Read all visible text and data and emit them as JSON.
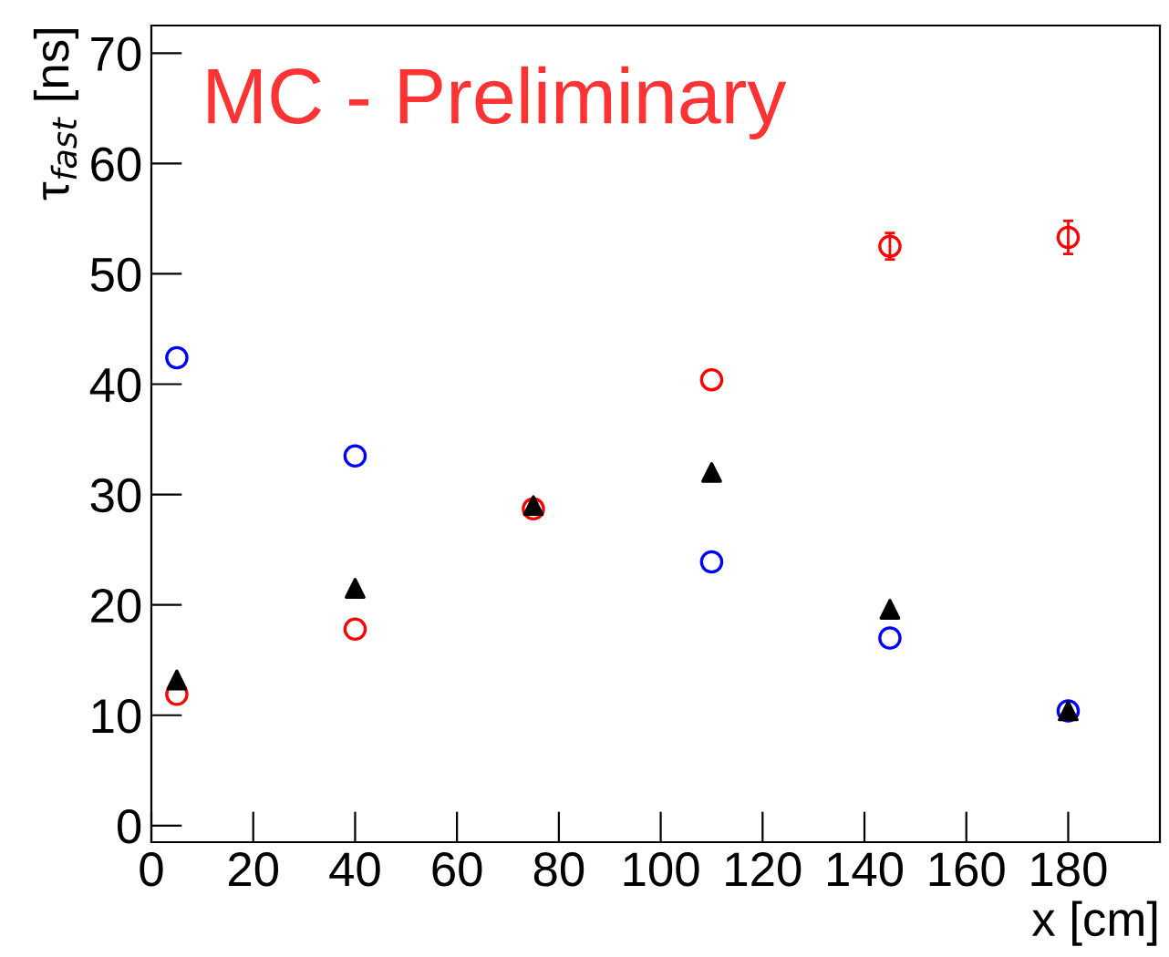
{
  "chart_data": {
    "type": "scatter",
    "xlabel": "x [cm]",
    "ylabel": "τ$_{fast}$ [ns]",
    "annotations": [
      "MC - Preliminary"
    ],
    "xlim": [
      0,
      198
    ],
    "xticks": [
      0,
      20,
      40,
      60,
      80,
      100,
      120,
      140,
      160,
      180
    ],
    "ylim": [
      -1.5,
      72.5
    ],
    "yticks": [
      0,
      10,
      20,
      30,
      40,
      50,
      60,
      70
    ],
    "grid": false,
    "legend": false,
    "series": [
      {
        "color": "#0000ff",
        "marker": "circle",
        "x": [
          5,
          40,
          75,
          110,
          145,
          180
        ],
        "values": [
          42.4,
          33.5,
          null,
          23.9,
          17.0,
          10.4
        ]
      },
      {
        "color": "#ff0000",
        "marker": "circle",
        "x": [
          5,
          40,
          75,
          110,
          145,
          180
        ],
        "values": [
          11.9,
          17.8,
          28.7,
          40.4,
          52.5,
          53.3
        ],
        "errors": [
          null,
          null,
          null,
          null,
          1.2,
          1.5
        ]
      },
      {
        "color": "#000000",
        "marker": "triangle",
        "x": [
          5,
          40,
          75,
          110,
          145,
          180
        ],
        "values": [
          13.2,
          21.5,
          29.0,
          32.0,
          19.6,
          10.4
        ]
      }
    ]
  }
}
